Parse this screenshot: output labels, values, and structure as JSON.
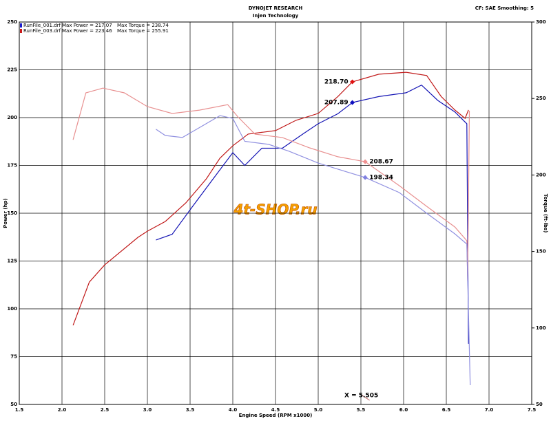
{
  "chart_data": {
    "type": "line",
    "title": "DYNOJET RESEARCH",
    "subtitle": "Injen Technology",
    "settings_text": "CF: SAE Smoothing: 5",
    "xlabel": "Engine Speed (RPM x1000)",
    "ylabel": "Power (hp)",
    "y2label": "Torque (ft-lbs)",
    "watermark": "4t-SHOP.ru",
    "cursor_label": "X = 5.505",
    "legend": [
      {
        "file": "RunFile_001.drf",
        "power": "Max Power = 217.07",
        "torque": "Max Torque = 238.74",
        "color": "#1a1acc"
      },
      {
        "file": "RunFile_003.drf",
        "power": "Max Power = 223.46",
        "torque": "Max Torque = 255.91",
        "color": "#cc1a1a"
      }
    ],
    "xlim": [
      1.5,
      7.5
    ],
    "xticks": [
      1.5,
      {
        "value": 2,
        "label": "2.0"
      },
      2.5,
      {
        "value": 3,
        "label": "3.0"
      },
      3.5,
      {
        "value": 4,
        "label": "4.0"
      },
      4.5,
      {
        "value": 5,
        "label": "5.0"
      },
      5.5,
      {
        "value": 6,
        "label": "6.0"
      },
      6.5,
      {
        "value": 7,
        "label": "7.0"
      },
      7.5
    ],
    "ylim": [
      50,
      250
    ],
    "yticks": [
      50,
      75,
      100,
      125,
      150,
      175,
      200,
      225,
      250
    ],
    "y2lim": [
      50,
      300
    ],
    "y2ticks": [
      50,
      100,
      150,
      200,
      250,
      300
    ],
    "grid": true,
    "series": [
      {
        "color": "#c01818",
        "axis": "y",
        "x": [
          2.13,
          2.32,
          2.5,
          2.89,
          3.0,
          3.21,
          3.45,
          3.69,
          3.85,
          4.0,
          4.18,
          4.5,
          4.74,
          5.0,
          5.23,
          5.4,
          5.71,
          6.03,
          6.27,
          6.44,
          6.6,
          6.72,
          6.76
        ],
        "values": [
          91.4,
          114,
          123,
          137.4,
          140.6,
          145.7,
          155.4,
          168,
          178.8,
          185.3,
          191.4,
          193.2,
          198.6,
          202.2,
          211,
          218.7,
          222.7,
          223.7,
          222,
          211,
          204,
          199.6,
          204
        ]
      },
      {
        "color": "#1414b4",
        "axis": "y",
        "x": [
          3.1,
          3.29,
          3.53,
          3.77,
          4.0,
          4.14,
          4.34,
          4.58,
          4.82,
          5.0,
          5.23,
          5.4,
          5.71,
          6.03,
          6.21,
          6.4,
          6.6,
          6.74,
          6.76
        ],
        "values": [
          136,
          139,
          153.6,
          168,
          181.7,
          175,
          184,
          184,
          191.4,
          196.8,
          202,
          207.89,
          211,
          213,
          217,
          209,
          203,
          196.8,
          81.7
        ]
      },
      {
        "color": "#e89090",
        "axis": "y2",
        "x": [
          2.13,
          2.28,
          2.48,
          2.73,
          3.0,
          3.29,
          3.61,
          3.94,
          4.06,
          4.26,
          4.58,
          4.9,
          5.23,
          5.55,
          5.95,
          6.27,
          6.6,
          6.74,
          6.75,
          6.77
        ],
        "values": [
          223,
          253.7,
          256.8,
          253.7,
          244.7,
          240.2,
          242.4,
          246,
          238,
          226.7,
          224.5,
          217.7,
          211.9,
          208.67,
          193,
          179.5,
          166,
          157,
          131,
          242
        ]
      },
      {
        "color": "#9090e0",
        "axis": "y2",
        "x": [
          3.1,
          3.21,
          3.41,
          3.61,
          3.85,
          4.0,
          4.14,
          4.42,
          4.66,
          5.0,
          5.55,
          5.95,
          6.27,
          6.6,
          6.74,
          6.78
        ],
        "values": [
          229.9,
          225.8,
          224.5,
          231,
          238.8,
          237,
          222,
          220,
          215.5,
          207.8,
          198.34,
          188.5,
          175,
          161.5,
          154.8,
          62.6
        ]
      }
    ],
    "markers": {
      "x": [
        5.4,
        5.4,
        5.55,
        5.55
      ],
      "values": [
        218.7,
        207.89,
        208.67,
        198.34
      ],
      "value_labels": [
        "218.70",
        "207.89",
        "208.67",
        "198.34"
      ],
      "colors": [
        "#e01010",
        "#1010c0",
        "#f09090",
        "#8080e0"
      ],
      "axes": [
        "y",
        "y",
        "y2",
        "y2"
      ]
    },
    "cursor_x": 5.505
  }
}
